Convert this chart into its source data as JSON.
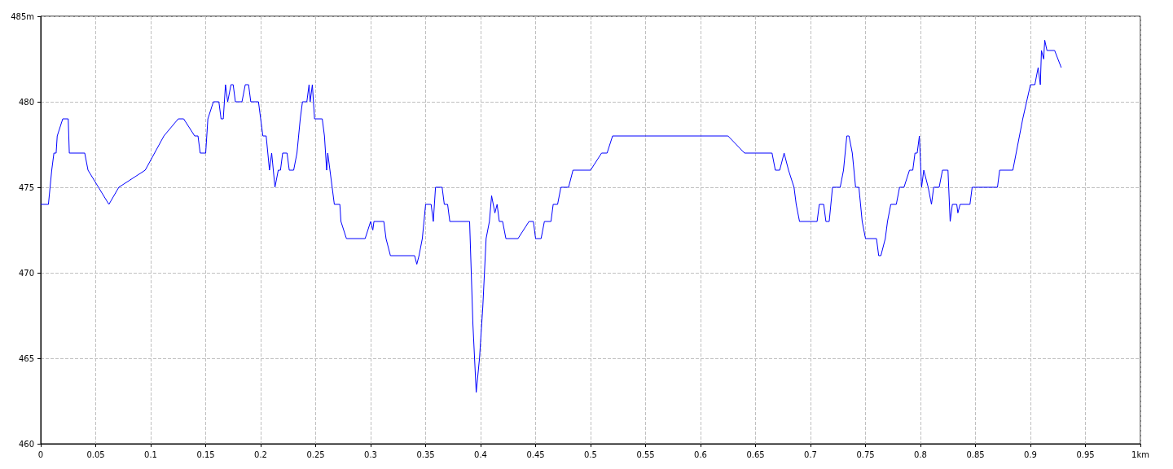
{
  "chart_data": {
    "type": "line",
    "xlim": [
      0,
      1
    ],
    "ylim": [
      460,
      485
    ],
    "xticks": [
      0,
      0.05,
      0.1,
      0.15,
      0.2,
      0.25,
      0.3,
      0.35,
      0.4,
      0.45,
      0.5,
      0.55,
      0.6,
      0.65,
      0.7,
      0.75,
      0.8,
      0.85,
      0.9,
      0.95,
      {
        "value": 1,
        "label": "1km"
      }
    ],
    "yticks": [
      460,
      465,
      470,
      475,
      480,
      {
        "value": 485,
        "label": "485m"
      }
    ],
    "grid": true,
    "marker": "none",
    "line_style": "solid",
    "series": [
      {
        "color": "#0000ff",
        "x": [
          0,
          0.007,
          0.01,
          0.012,
          0.014,
          0.015,
          0.02,
          0.025,
          0.026,
          0.04,
          0.043,
          0.062,
          0.071,
          0.095,
          0.112,
          0.125,
          0.13,
          0.14,
          0.143,
          0.145,
          0.15,
          0.152,
          0.157,
          0.162,
          0.164,
          0.166,
          0.168,
          0.17,
          0.173,
          0.175,
          0.177,
          0.183,
          0.186,
          0.189,
          0.191,
          0.198,
          0.2,
          0.202,
          0.205,
          0.208,
          0.21,
          0.213,
          0.216,
          0.218,
          0.22,
          0.224,
          0.226,
          0.23,
          0.233,
          0.236,
          0.238,
          0.242,
          0.244,
          0.245,
          0.247,
          0.249,
          0.256,
          0.258,
          0.26,
          0.261,
          0.263,
          0.265,
          0.267,
          0.272,
          0.273,
          0.278,
          0.295,
          0.3,
          0.302,
          0.303,
          0.312,
          0.314,
          0.318,
          0.34,
          0.342,
          0.344,
          0.347,
          0.35,
          0.355,
          0.357,
          0.359,
          0.365,
          0.367,
          0.37,
          0.372,
          0.39,
          0.393,
          0.396,
          0.399,
          0.402,
          0.405,
          0.408,
          0.41,
          0.413,
          0.415,
          0.417,
          0.42,
          0.423,
          0.434,
          0.444,
          0.448,
          0.45,
          0.455,
          0.458,
          0.464,
          0.466,
          0.47,
          0.473,
          0.48,
          0.484,
          0.5,
          0.51,
          0.515,
          0.52,
          0.625,
          0.64,
          0.665,
          0.668,
          0.672,
          0.676,
          0.68,
          0.685,
          0.687,
          0.69,
          0.706,
          0.708,
          0.712,
          0.714,
          0.717,
          0.72,
          0.727,
          0.73,
          0.733,
          0.735,
          0.738,
          0.741,
          0.744,
          0.747,
          0.75,
          0.76,
          0.762,
          0.764,
          0.768,
          0.77,
          0.773,
          0.778,
          0.781,
          0.785,
          0.79,
          0.793,
          0.795,
          0.797,
          0.799,
          0.801,
          0.803,
          0.807,
          0.81,
          0.812,
          0.817,
          0.82,
          0.825,
          0.827,
          0.829,
          0.833,
          0.834,
          0.836,
          0.845,
          0.847,
          0.87,
          0.872,
          0.884,
          0.893,
          0.9,
          0.904,
          0.907,
          0.909,
          0.91,
          0.912,
          0.913,
          0.915,
          0.922,
          0.928
        ],
        "values": [
          474,
          474,
          476,
          477,
          477,
          478,
          479,
          479,
          477,
          477,
          476,
          474,
          475,
          476,
          478,
          479,
          479,
          478,
          478,
          477,
          477,
          479,
          480,
          480,
          479,
          479,
          481,
          480,
          481,
          481,
          480,
          480,
          481,
          481,
          480,
          480,
          479,
          478,
          478,
          476,
          477,
          475,
          476,
          476,
          477,
          477,
          476,
          476,
          477,
          479,
          480,
          480,
          481,
          480,
          481,
          479,
          479,
          478,
          476,
          477,
          476,
          475,
          474,
          474,
          473,
          472,
          472,
          473,
          472.5,
          473,
          473,
          472,
          471,
          471,
          470.5,
          471,
          472,
          474,
          474,
          473,
          475,
          475,
          474,
          474,
          473,
          473,
          467,
          463,
          465,
          468,
          472,
          473,
          474.5,
          473.5,
          474,
          473,
          473,
          472,
          472,
          473,
          473,
          472,
          472,
          473,
          473,
          474,
          474,
          475,
          475,
          476,
          476,
          477,
          477,
          478,
          478,
          477,
          477,
          476,
          476,
          477,
          476,
          475,
          474,
          473,
          473,
          474,
          474,
          473,
          473,
          475,
          475,
          476,
          478,
          478,
          477,
          475,
          475,
          473,
          472,
          472,
          471,
          471,
          472,
          473,
          474,
          474,
          475,
          475,
          476,
          476,
          477,
          477,
          478,
          475,
          476,
          475,
          474,
          475,
          475,
          476,
          476,
          473,
          474,
          474,
          473.5,
          474,
          474,
          475,
          475,
          476,
          476,
          479,
          481,
          481,
          482,
          481,
          483,
          482.5,
          483.6,
          483,
          483,
          482
        ]
      }
    ]
  }
}
